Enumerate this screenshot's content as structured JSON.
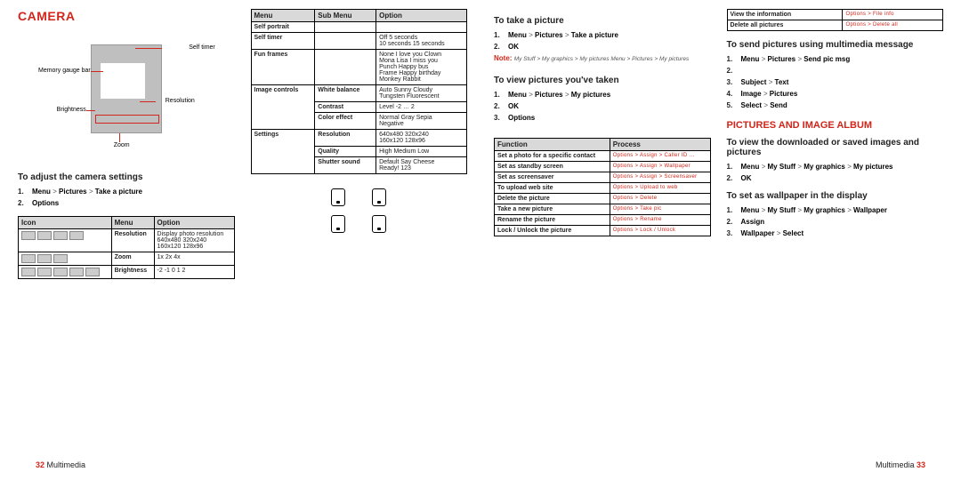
{
  "colors": {
    "accent": "#d1261b",
    "tableHeader": "#d9d9d9",
    "text": "#222222",
    "bg": "#ffffff"
  },
  "footer": {
    "section": "Multimedia",
    "leftPage": "32",
    "rightPage": "33"
  },
  "pageL": {
    "title": "CAMERA",
    "diagram": {
      "selfTimer": "Self timer",
      "memory": "Memory gauge bar",
      "brightness": "Brightness",
      "resolution": "Resolution",
      "zoom": "Zoom"
    },
    "h_adjust": "To adjust the camera settings",
    "steps_adjust": [
      {
        "n": "1.",
        "t": "<b>Menu</b> > <b>Pictures</b> > <b>Take a picture</b>"
      },
      {
        "n": "2.",
        "t": "<b>Options</b>"
      }
    ],
    "tableIconsHead": [
      "Icon",
      "Menu",
      "Option"
    ],
    "tableIcons": [
      {
        "menu": "Resolution",
        "opt": "Display photo resolution\n640x480   320x240\n160x120   128x96"
      },
      {
        "menu": "Zoom",
        "opt": "1x   2x   4x"
      },
      {
        "menu": "Brightness",
        "opt": "-2   -1   0   1   2"
      }
    ],
    "tableBigHead": [
      "Menu",
      "Sub Menu",
      "Option"
    ],
    "tableBig": [
      {
        "menu": "Self portrait",
        "sub": "",
        "opt": ""
      },
      {
        "menu": "Self timer",
        "sub": "",
        "opt": "Off   5 seconds\n10 seconds   15 seconds"
      },
      {
        "menu": "Fun frames",
        "sub": "",
        "opt": "None   I love you   Clown\nMona Lisa   I miss you\nPunch   Happy bus\nFrame   Happy birthday\nMonkey   Rabbit"
      },
      {
        "menu": "Image controls",
        "sub1": "White balance",
        "opt1": "Auto   Sunny   Cloudy\nTungsten   Fluorescent",
        "sub2": "Contrast",
        "opt2": "Level  -2 … 2",
        "sub3": "Color effect",
        "opt3": "Normal   Gray   Sepia\nNegative"
      },
      {
        "menu": "Settings",
        "sub1": "Resolution",
        "opt1": "640x480   320x240\n160x120   128x96",
        "sub2": "Quality",
        "opt2": "High   Medium   Low",
        "sub3": "Shutter sound",
        "opt3": "Default   Say Cheese\nReady! 123"
      }
    ],
    "phoneLabels": [
      "",
      "",
      "",
      ""
    ]
  },
  "pageR": {
    "h_take": "To take a picture",
    "steps_take": [
      {
        "n": "1.",
        "t": "<b>Menu</b> > <b>Pictures</b> > <b>Take a picture</b>"
      },
      {
        "n": "2.",
        "t": "<b>OK</b>"
      }
    ],
    "noteLabel": "Note:",
    "noteText": "My Stuff > My graphics > My pictures    Menu > Pictures > My pictures",
    "h_view": "To view pictures you've taken",
    "steps_view": [
      {
        "n": "1.",
        "t": "<b>Menu</b> > <b>Pictures</b> > <b>My pictures</b>"
      },
      {
        "n": "2.",
        "t": "<b>OK</b>"
      },
      {
        "n": "3.",
        "t": "<b>Options</b>"
      }
    ],
    "tableFuncHead": [
      "Function",
      "Process"
    ],
    "tableFunc": [
      {
        "f": "Set a photo for a specific contact",
        "p": "Options > Assign > Caller ID …"
      },
      {
        "f": "Set as standby screen",
        "p": "Options > Assign > Wallpaper"
      },
      {
        "f": "Set as screensaver",
        "p": "Options > Assign > Screensaver"
      },
      {
        "f": "To upload web site",
        "p": "Options > Upload to web"
      },
      {
        "f": "Delete the picture",
        "p": "Options > Delete"
      },
      {
        "f": "Take a new picture",
        "p": "Options > Take pic"
      },
      {
        "f": "Rename the picture",
        "p": "Options > Rename"
      },
      {
        "f": "Lock / Unlock the picture",
        "p": "Options > Lock / Unlock"
      }
    ],
    "tableInfoHead": "",
    "tableInfo": [
      {
        "f": "View the information",
        "p": "Options > File info"
      },
      {
        "f": "Delete all pictures",
        "p": "Options > Delete all"
      }
    ],
    "h_send": "To send pictures using multimedia message",
    "steps_send": [
      {
        "n": "1.",
        "t": "<b>Menu</b> > <b>Pictures</b> > <b>Send pic msg</b>"
      },
      {
        "n": "2.",
        "t": ""
      },
      {
        "n": "3.",
        "t": "<b>Subject</b> > <b>Text</b>"
      },
      {
        "n": "4.",
        "t": "<b>Image</b> > <b>Pictures</b>"
      },
      {
        "n": "5.",
        "t": "<b>Select</b> > <b>Send</b>"
      }
    ],
    "h_album": "PICTURES AND IMAGE ALBUM",
    "h_dl": "To view the downloaded or saved images and pictures",
    "steps_dl": [
      {
        "n": "1.",
        "t": "<b>Menu</b> > <b>My Stuff</b> > <b>My graphics</b> > <b>My pictures</b>"
      },
      {
        "n": "2.",
        "t": "<b>OK</b>"
      }
    ],
    "h_wall": "To set as wallpaper in the display",
    "steps_wall": [
      {
        "n": "1.",
        "t": "<b>Menu</b> > <b>My Stuff</b> > <b>My graphics</b> > <b>Wallpaper</b>"
      },
      {
        "n": "2.",
        "t": "<b>Assign</b>"
      },
      {
        "n": "3.",
        "t": "<b>Wallpaper</b> > <b>Select</b>"
      }
    ]
  }
}
